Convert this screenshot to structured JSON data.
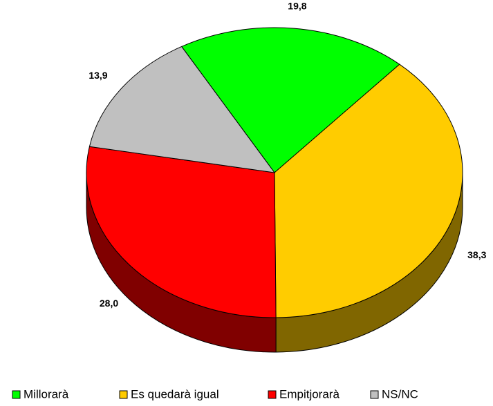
{
  "chart_data": {
    "type": "pie",
    "categories": [
      "Millorarà",
      "Es quedarà igual",
      "Empitjorarà",
      "NS/NC"
    ],
    "values": [
      19.8,
      38.3,
      28.0,
      13.9
    ],
    "value_labels": [
      "19,8",
      "38,3",
      "28,0",
      "13,9"
    ],
    "colors": [
      "#00ff00",
      "#ffcc00",
      "#ff0000",
      "#c0c0c0"
    ],
    "legend": "bottom"
  }
}
